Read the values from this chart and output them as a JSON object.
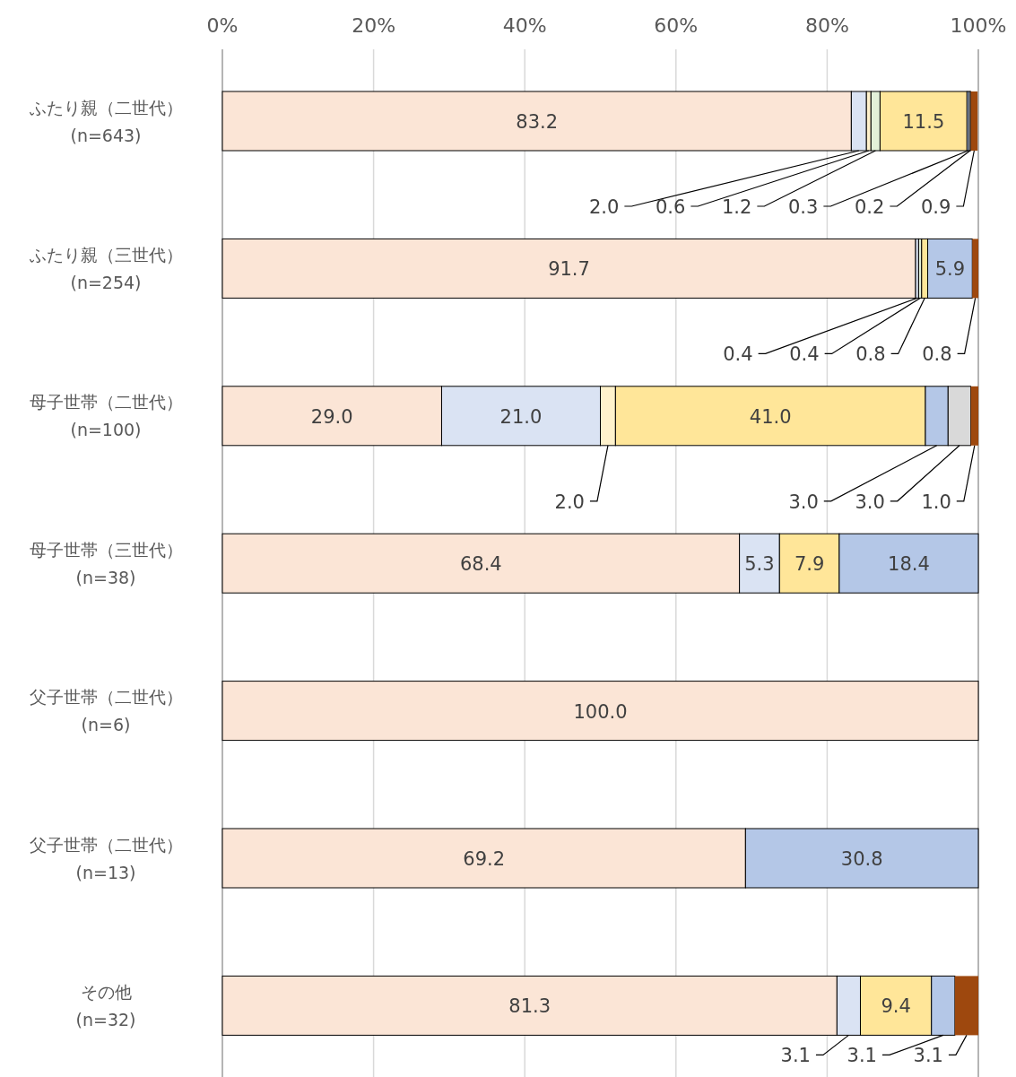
{
  "chart_data": {
    "type": "bar",
    "orientation": "horizontal",
    "stacked": true,
    "grid": "x",
    "categories": [
      "ふたり親（二世代）\n(n=643)",
      "ふたり親（三世代）\n(n=254)",
      "母子世帯（二世代）\n(n=100)",
      "母子世帯（三世代）\n(n=38)",
      "父子世帯（二世代）\n(n=6)",
      "父子世帯（二世代）\n(n=13)",
      "その他\n(n=32)"
    ],
    "xlim": [
      0,
      100
    ],
    "xticks": [
      {
        "value": 0,
        "label": "0%"
      },
      {
        "value": 20,
        "label": "20%"
      },
      {
        "value": 40,
        "label": "40%"
      },
      {
        "value": 60,
        "label": "60%"
      },
      {
        "value": 80,
        "label": "80%"
      },
      {
        "value": 100,
        "label": "100%"
      }
    ],
    "series": [
      {
        "color": "#fbe5d6",
        "values": [
          83.2,
          91.7,
          29.0,
          68.4,
          100.0,
          69.2,
          81.3
        ],
        "value_labels": [
          "83.2",
          "91.7",
          "29.0",
          "68.4",
          "100.0",
          "69.2",
          "81.3"
        ]
      },
      {
        "color": "#dae3f3",
        "values": [
          2.0,
          0.4,
          21.0,
          5.3,
          null,
          null,
          3.1
        ],
        "value_labels": [
          "2.0",
          "0.4",
          "21.0",
          "5.3",
          null,
          null,
          "3.1"
        ]
      },
      {
        "color": "#fff2cc",
        "values": [
          0.6,
          null,
          2.0,
          null,
          null,
          null,
          null
        ],
        "value_labels": [
          "0.6",
          null,
          "2.0",
          null,
          null,
          null,
          null
        ]
      },
      {
        "color": "#e2f0d9",
        "values": [
          1.2,
          0.4,
          null,
          null,
          null,
          null,
          null
        ],
        "value_labels": [
          "1.2",
          "0.4",
          null,
          null,
          null,
          null,
          null
        ]
      },
      {
        "color": "#ffe699",
        "values": [
          11.5,
          0.8,
          41.0,
          7.9,
          null,
          null,
          9.4
        ],
        "value_labels": [
          "11.5",
          "0.8",
          "41.0",
          "7.9",
          null,
          null,
          "9.4"
        ]
      },
      {
        "color": "#b4c7e7",
        "values": [
          0.3,
          5.9,
          3.0,
          18.4,
          null,
          30.8,
          3.1
        ],
        "value_labels": [
          "0.3",
          "5.9",
          "3.0",
          "18.4",
          null,
          "30.8",
          "3.1"
        ]
      },
      {
        "color": "#d9d9d9",
        "values": [
          0.2,
          null,
          3.0,
          null,
          null,
          null,
          null
        ],
        "value_labels": [
          "0.2",
          null,
          "3.0",
          null,
          null,
          null,
          null
        ]
      },
      {
        "color": "#9e480e",
        "values": [
          0.9,
          0.8,
          1.0,
          null,
          null,
          null,
          3.1
        ],
        "value_labels": [
          "0.9",
          "0.8",
          "1.0",
          null,
          null,
          null,
          "3.1"
        ]
      }
    ]
  }
}
